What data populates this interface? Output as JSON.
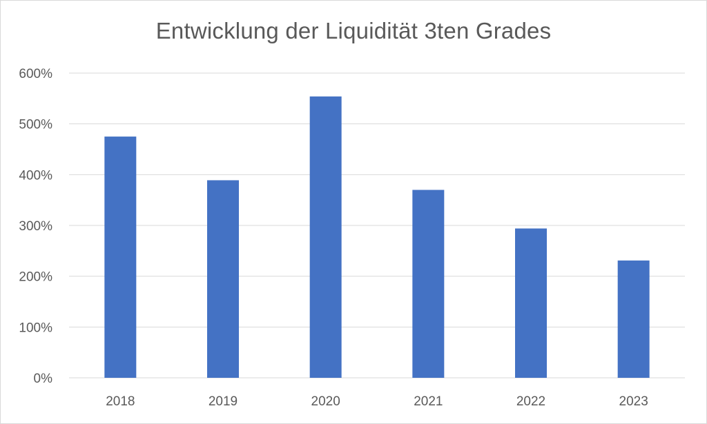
{
  "chart_data": {
    "type": "bar",
    "title": "Entwicklung der Liquidität 3ten Grades",
    "xlabel": "",
    "ylabel": "",
    "categories": [
      "2018",
      "2019",
      "2020",
      "2021",
      "2022",
      "2023"
    ],
    "values": [
      475,
      389,
      554,
      370,
      294,
      231
    ],
    "unit": "%",
    "ylim": [
      0,
      600
    ],
    "y_ticks": [
      0,
      100,
      200,
      300,
      400,
      500,
      600
    ],
    "y_tick_labels": [
      "0%",
      "100%",
      "200%",
      "300%",
      "400%",
      "500%",
      "600%"
    ],
    "grid": true,
    "legend": "none",
    "colors": {
      "bar": "#4472c4",
      "grid": "#d9d9d9",
      "axis_text": "#595959",
      "title": "#595959"
    }
  }
}
